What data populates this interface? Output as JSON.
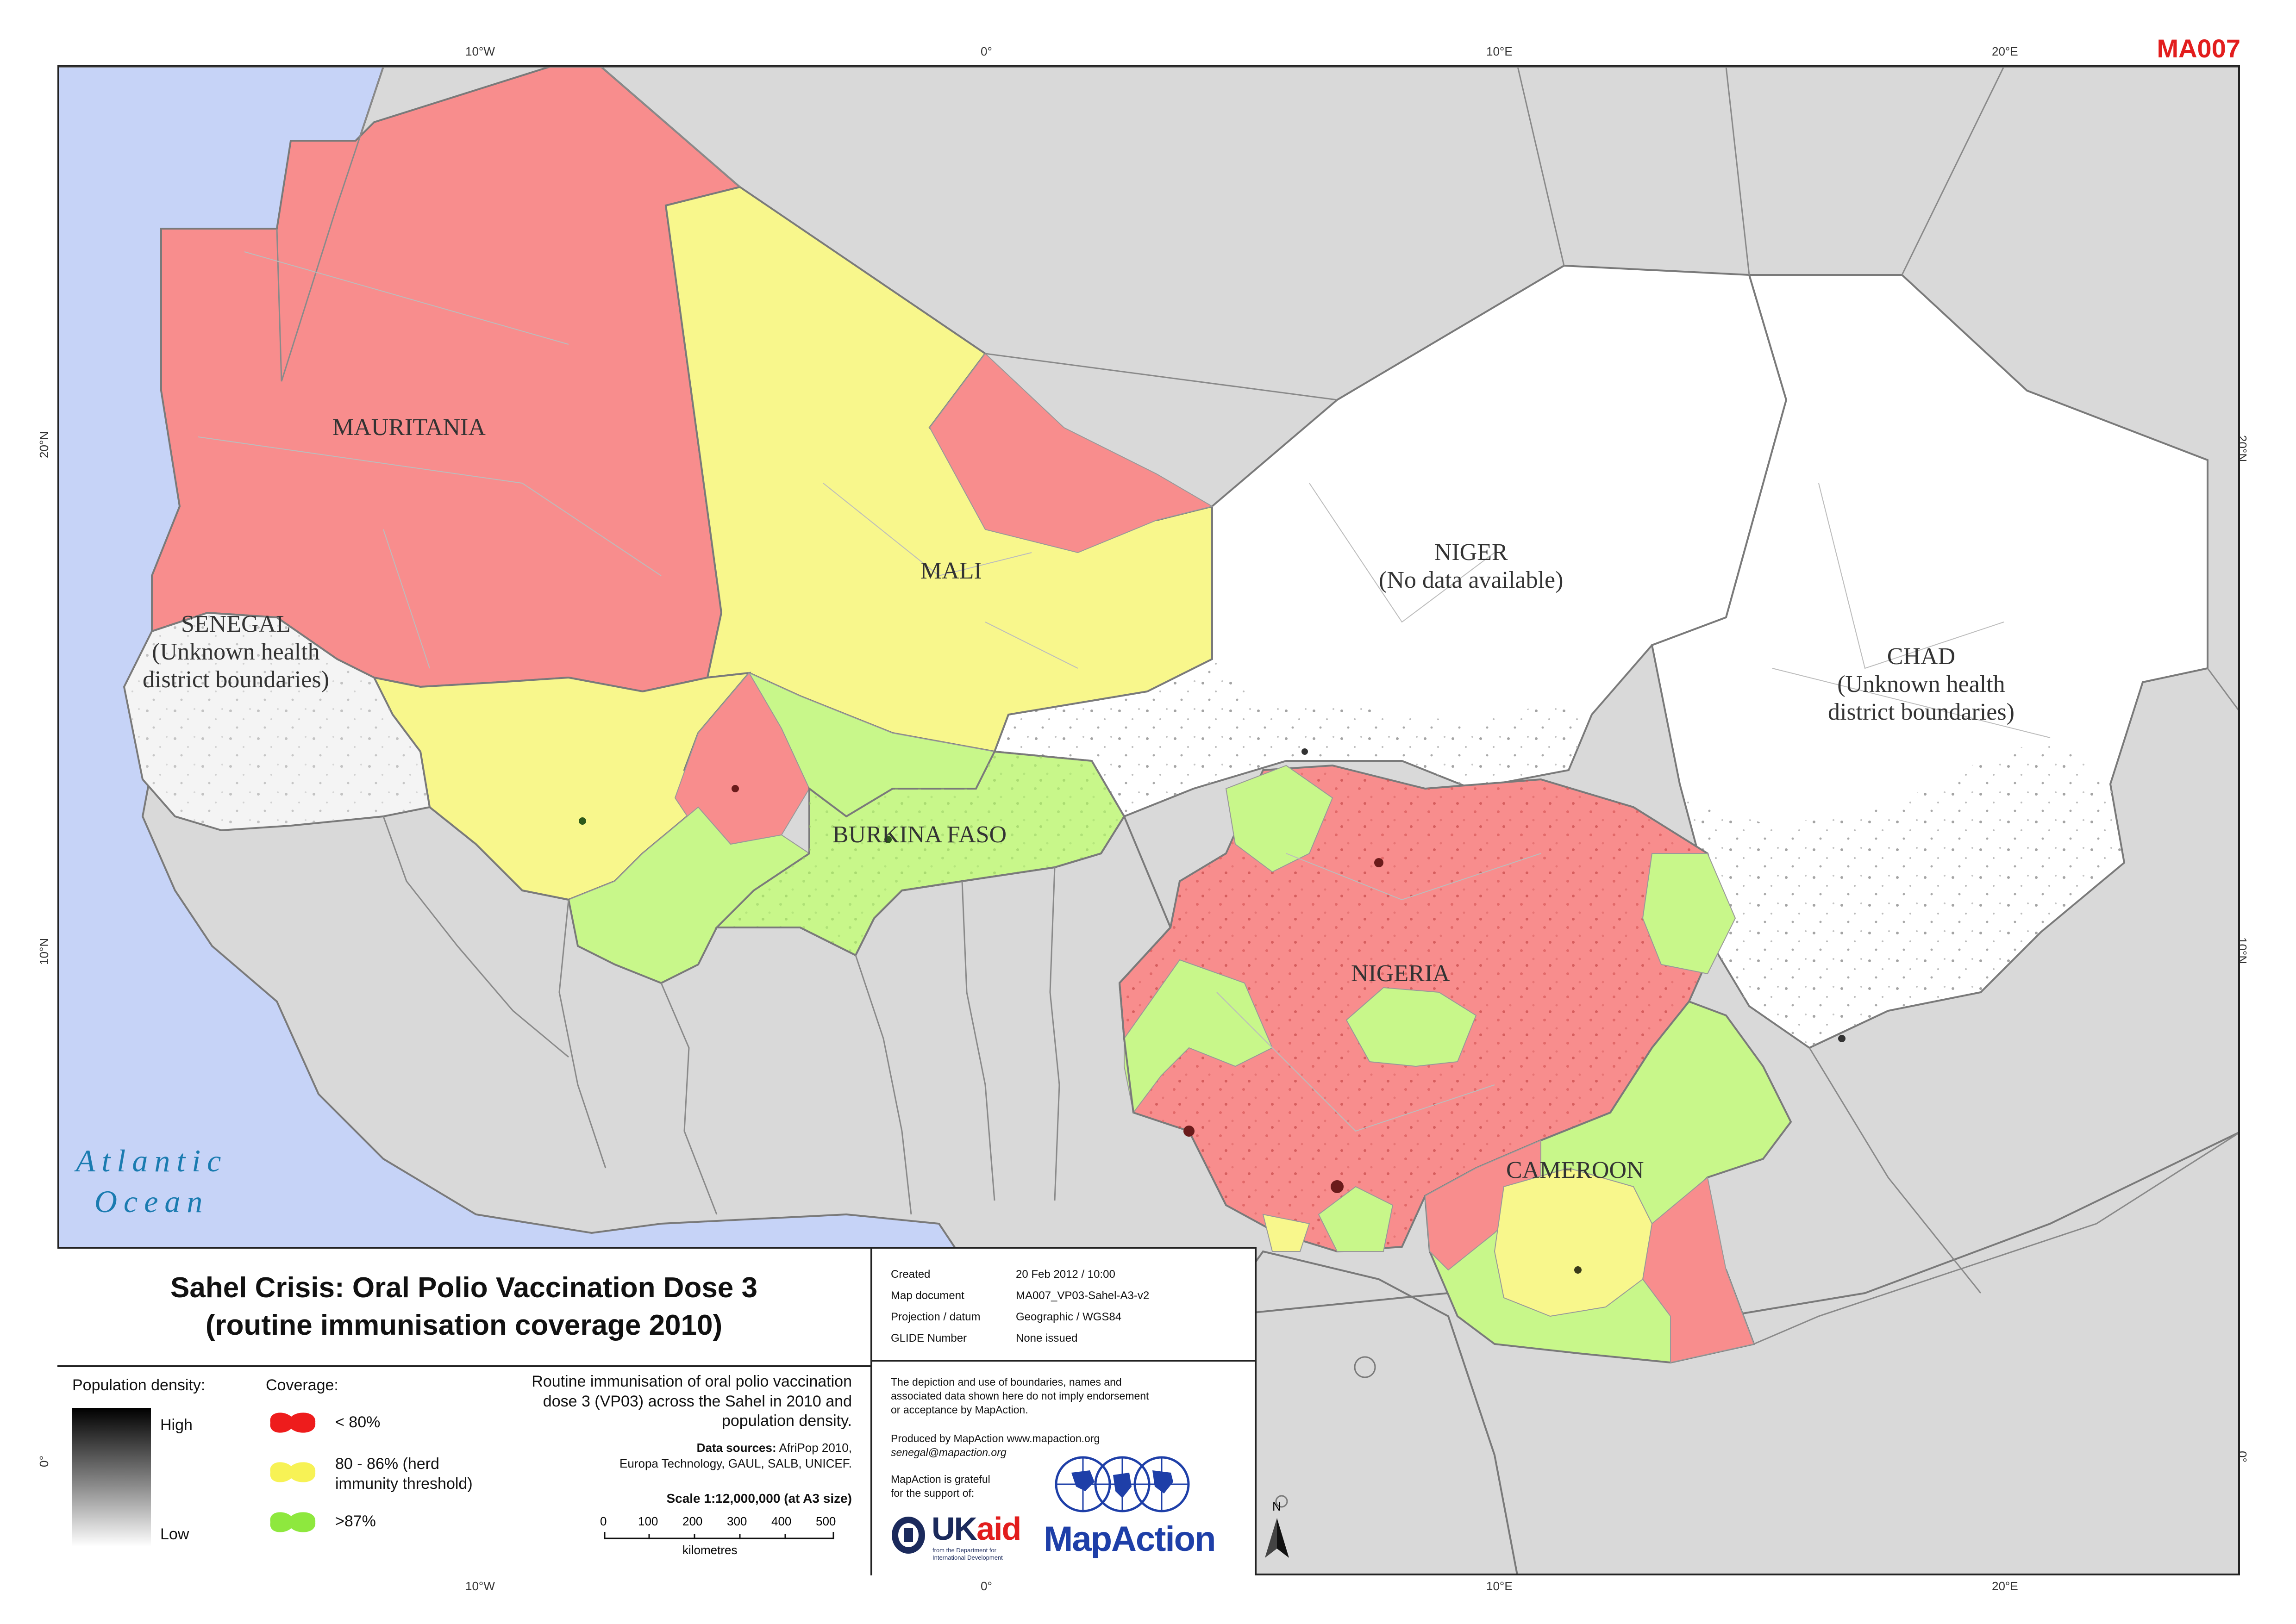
{
  "map_code": "MA007",
  "graticule": {
    "lon_top": [
      "10°W",
      "0°",
      "10°E",
      "20°E"
    ],
    "lon_bottom": [
      "10°W",
      "0°",
      "10°E",
      "20°E"
    ],
    "lat_left": [
      "20°N",
      "10°N",
      "0°"
    ],
    "lat_right": [
      "20°N",
      "10°N",
      "0°"
    ]
  },
  "labels": {
    "mauritania": "MAURITANIA",
    "mali": "MALI",
    "niger_1": "NIGER",
    "niger_2": "(No data available)",
    "chad_1": "CHAD",
    "chad_2": "(Unknown health",
    "chad_3": "district boundaries)",
    "senegal_1": "SENEGAL",
    "senegal_2": "(Unknown health",
    "senegal_3": "district boundaries)",
    "burkina": "BURKINA FASO",
    "nigeria": "NIGERIA",
    "cameroon": "CAMEROON",
    "ocean_1": "Atlantic",
    "ocean_2": "Ocean"
  },
  "colors": {
    "ocean": "#c6d3f7",
    "land_other": "#d9d9d9",
    "low_coverage": "#f88d8d",
    "mid_coverage": "#f8f78c",
    "high_coverage": "#c8f78a",
    "no_data": "#ffffff",
    "title_red": "#e21d1d"
  },
  "title": {
    "line1": "Sahel Crisis: Oral Polio Vaccination Dose 3",
    "line2": "(routine immunisation coverage 2010)"
  },
  "legend": {
    "density_title": "Population density:",
    "density_high": "High",
    "density_low": "Low",
    "coverage_title": "Coverage:",
    "cov_low": "< 80%",
    "cov_mid_1": "80 - 86% (herd",
    "cov_mid_2": "immunity threshold)",
    "cov_high": ">87%",
    "desc_1": "Routine immunisation of oral polio vaccination",
    "desc_2": "dose 3 (VP03) across the Sahel in 2010 and",
    "desc_3": "population density.",
    "sources_label": "Data sources:",
    "sources_1": "AfriPop 2010,",
    "sources_2": "Europa Technology, GAUL, SALB, UNICEF.",
    "scale": "Scale 1:12,000,000 (at A3 size)",
    "scale_ticks": [
      "0",
      "100",
      "200",
      "300",
      "400",
      "500"
    ],
    "scale_unit": "kilometres"
  },
  "meta": {
    "rows": [
      {
        "k": "Created",
        "v": "20 Feb 2012 / 10:00"
      },
      {
        "k": "Map document",
        "v": "MA007_VP03-Sahel-A3-v2"
      },
      {
        "k": "Projection / datum",
        "v": "Geographic / WGS84"
      },
      {
        "k": "GLIDE Number",
        "v": "None issued"
      }
    ]
  },
  "credits": {
    "disclaimer_1": "The depiction and use of boundaries, names and",
    "disclaimer_2": "associated data shown here do not imply endorsement",
    "disclaimer_3": "or acceptance by MapAction.",
    "produced_1": "Produced by MapAction www.mapaction.org",
    "produced_2": "senegal@mapaction.org",
    "grateful_1": "MapAction is grateful",
    "grateful_2": "for the support of:",
    "ukaid_uk": "UK",
    "ukaid_aid": "aid",
    "ukaid_sub_1": "from the Department for",
    "ukaid_sub_2": "International Development",
    "mapaction_logo": "MapAction",
    "north": "N"
  }
}
